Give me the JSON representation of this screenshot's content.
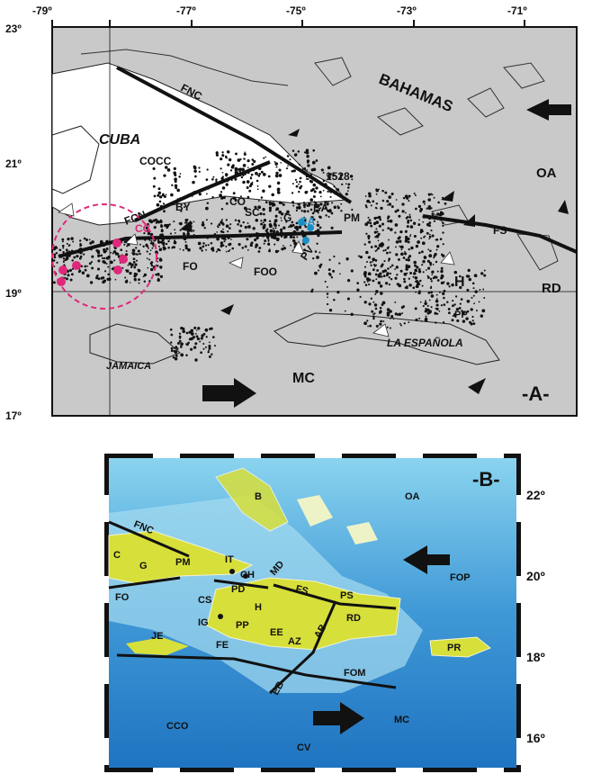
{
  "map_a": {
    "panel_label": "-A-",
    "lon_ticks": [
      "-79º",
      "-77º",
      "-75º",
      "-73º",
      "-71º"
    ],
    "lat_ticks": [
      "23º",
      "21º",
      "19º",
      "17º"
    ],
    "regions": {
      "cuba": "CUBA",
      "bahamas": "BAHAMAS",
      "jamaica": "JAMAICA",
      "espanola": "LA ESPAÑOLA"
    },
    "features": {
      "fnc": "FNC",
      "cocc": "COCC",
      "ni": "NI",
      "fcn": "FCN",
      "by": "BY",
      "co": "CO",
      "sc": "SC",
      "g": "G",
      "ba": "BA",
      "pm": "PM",
      "y1528": "1528",
      "cc": "CC",
      "ca": "CA",
      "fo": "FO",
      "foo": "FOO",
      "pv": "PV",
      "fs": "FS",
      "oa": "OA",
      "h": "H",
      "rd": "RD",
      "pp": "PP",
      "mc": "MC"
    },
    "colors": {
      "land": "#ffffff",
      "sea": "#c9c9c9",
      "faults": "#111111",
      "cc_highlight": "#e0287a",
      "ca_highlight": "#1a8fc4"
    }
  },
  "map_b": {
    "panel_label": "-B-",
    "lat_ticks": [
      "22º",
      "20º",
      "18º",
      "16º"
    ],
    "labels": {
      "fnc": "FNC",
      "b": "B",
      "oa": "OA",
      "c": "C",
      "g": "G",
      "pm": "PM",
      "it": "IT",
      "ch": "CH",
      "md": "MD",
      "fs": "FS",
      "ps": "PS",
      "fop": "FOP",
      "fo": "FO",
      "pd": "PD",
      "cs": "CS",
      "h": "H",
      "rd": "RD",
      "ig": "IG",
      "pp": "PP",
      "ab": "AB",
      "je": "JE",
      "fe": "FE",
      "ee": "EE",
      "az": "AZ",
      "pr": "PR",
      "fom": "FOM",
      "eb": "EB",
      "mc": "MC",
      "cco": "CCO",
      "cv": "CV"
    },
    "colors": {
      "sea_deep": "#1f73c0",
      "sea_shallow": "#8ad4ef",
      "land": "#d7df3a",
      "faults": "#111111"
    }
  }
}
